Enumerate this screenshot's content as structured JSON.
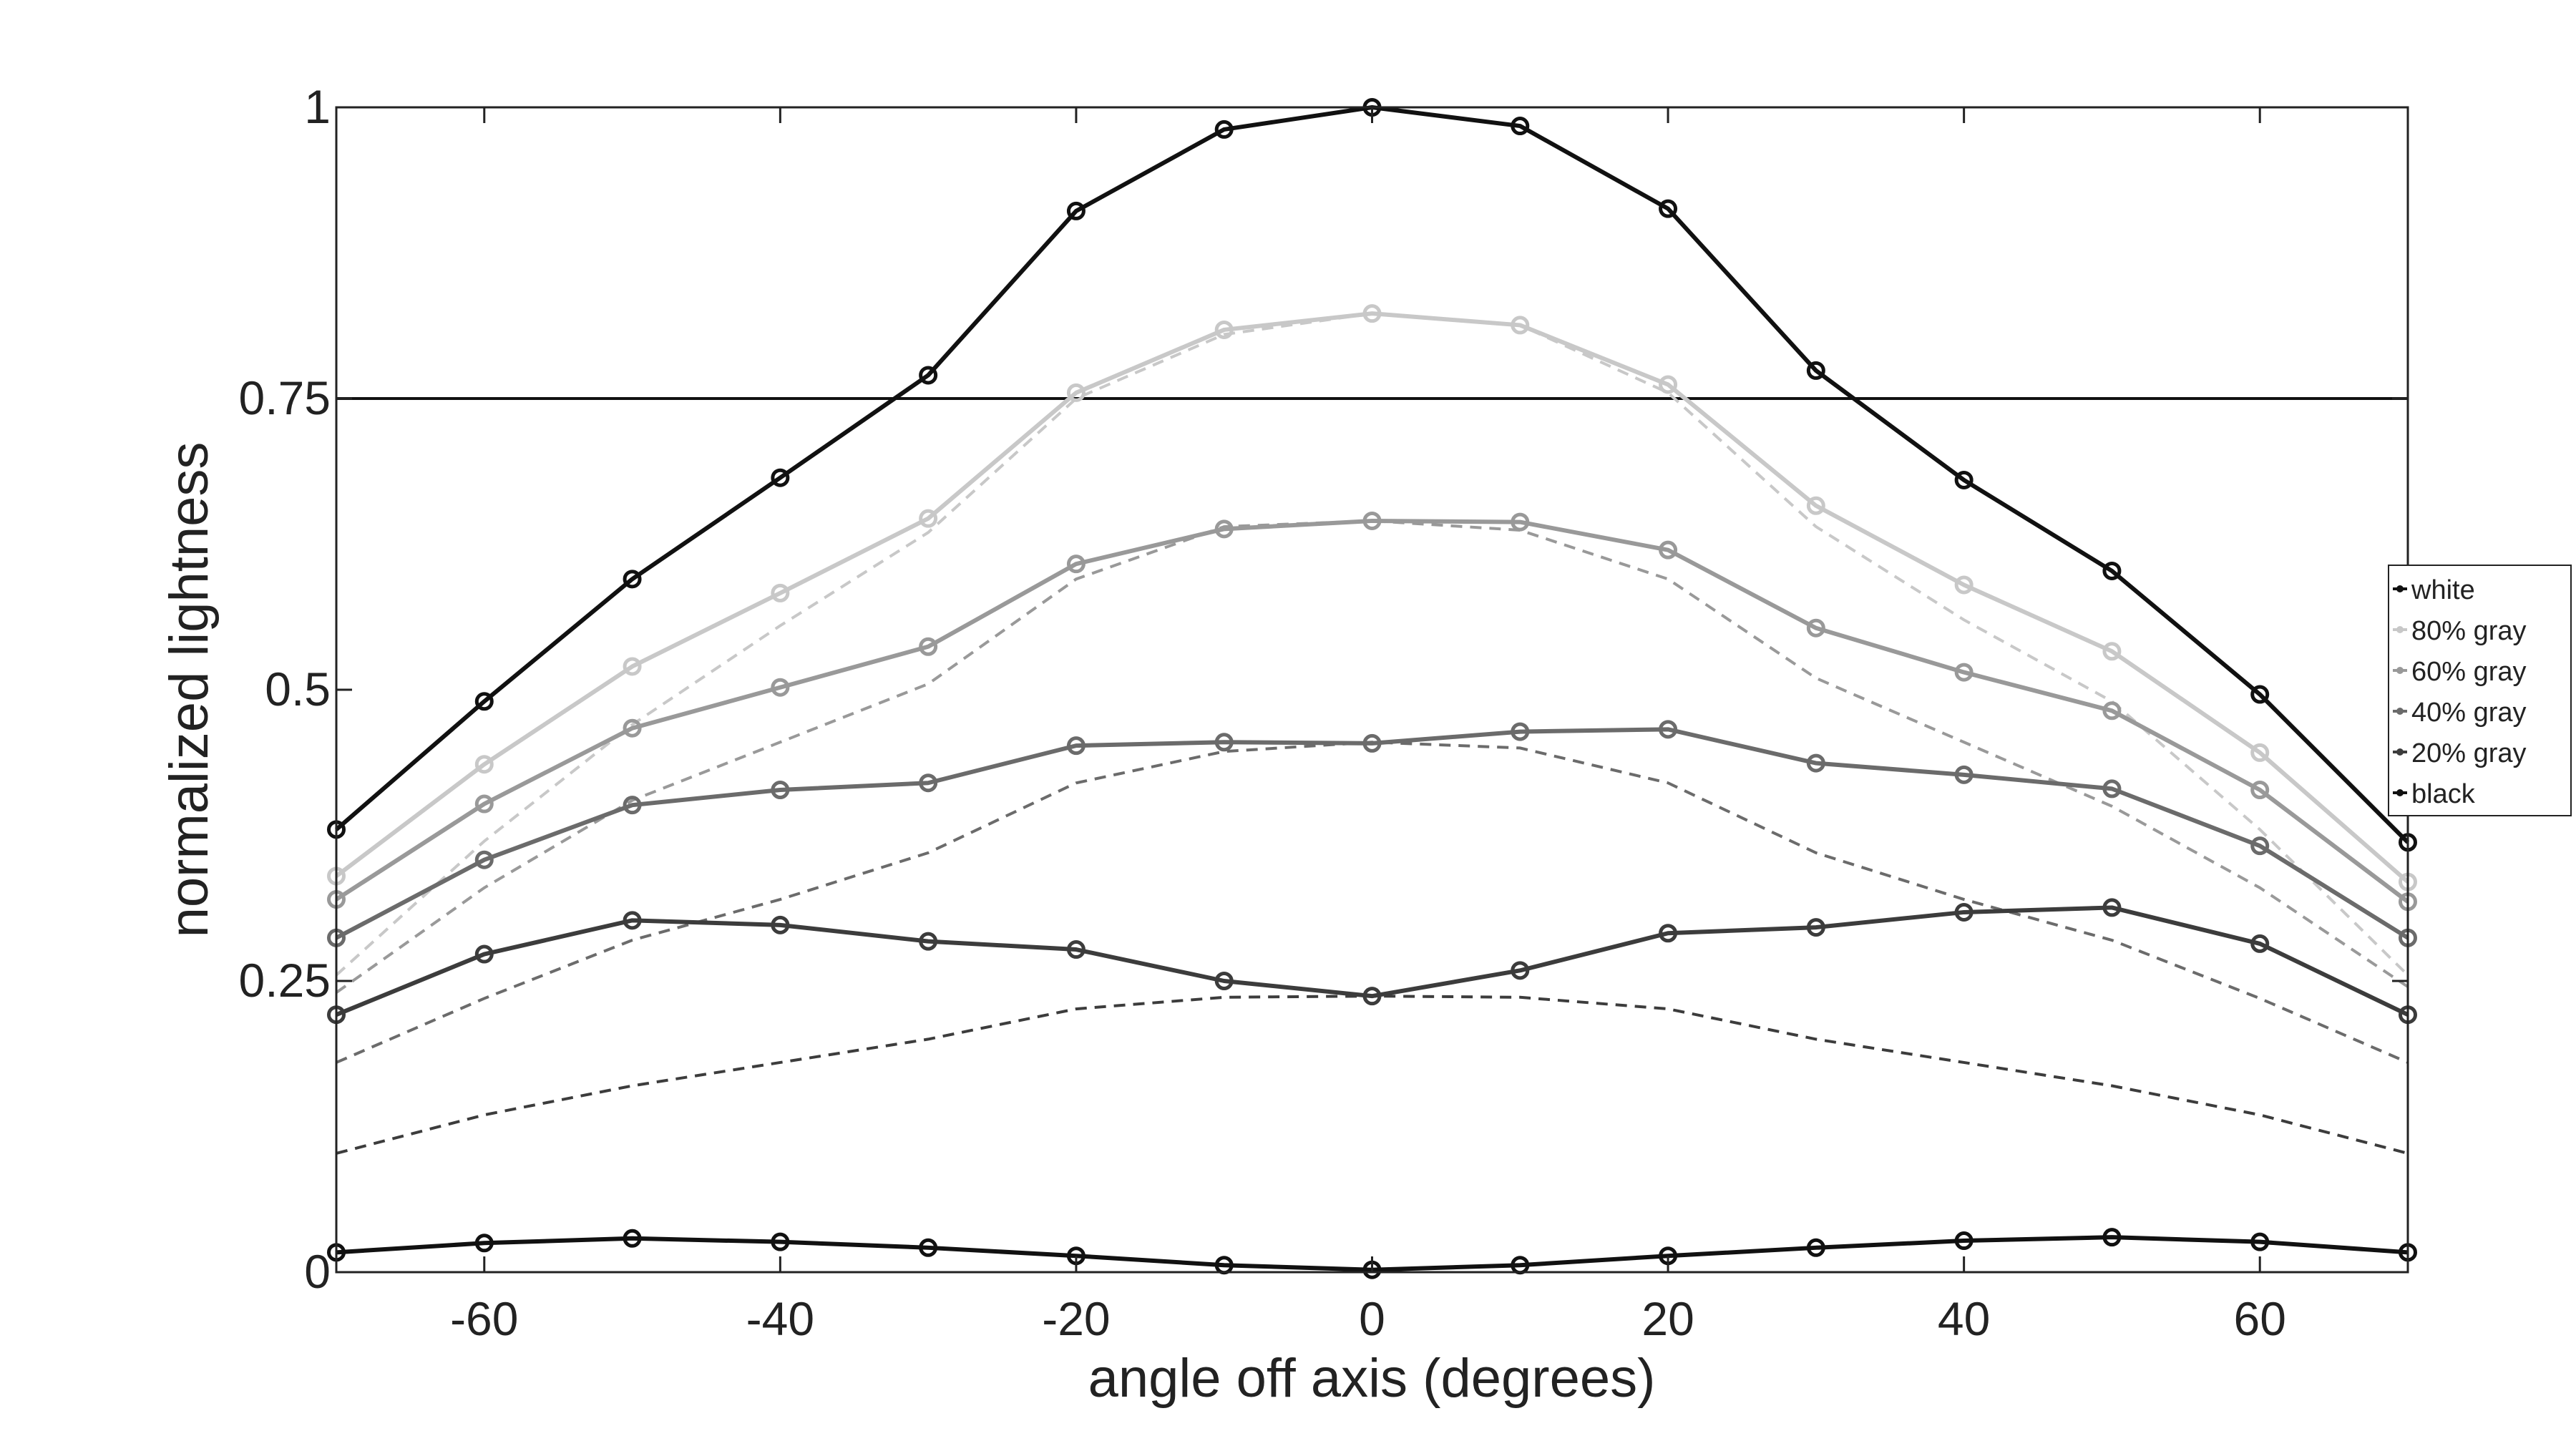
{
  "chart_data": {
    "type": "line",
    "title": "",
    "xlabel": "angle off axis (degrees)",
    "ylabel": "normalized lightness",
    "xlim": [
      -70,
      70
    ],
    "ylim": [
      0,
      1
    ],
    "x_ticks": [
      -60,
      -40,
      -20,
      0,
      20,
      40,
      60
    ],
    "x_tick_labels": [
      "-60",
      "-40",
      "-20",
      "0",
      "20",
      "40",
      "60"
    ],
    "y_ticks": [
      0,
      0.25,
      0.5,
      0.75,
      1
    ],
    "y_tick_labels": [
      "0",
      "0.25",
      "0.5",
      "0.75",
      "1"
    ],
    "reference_line": {
      "y": 0.75
    },
    "grid": false,
    "legend_position": "right",
    "x": [
      -70,
      -60,
      -50,
      -40,
      -30,
      -20,
      -10,
      0,
      10,
      20,
      30,
      40,
      50,
      60,
      70
    ],
    "series": [
      {
        "name": "white",
        "color": "#111111",
        "values": [
          0.38,
          0.49,
          0.595,
          0.682,
          0.77,
          0.911,
          0.981,
          1.0,
          0.984,
          0.913,
          0.774,
          0.68,
          0.602,
          0.496,
          0.369
        ]
      },
      {
        "name": "80% gray",
        "color": "#c8c8c8",
        "values": [
          0.34,
          0.436,
          0.52,
          0.583,
          0.647,
          0.755,
          0.809,
          0.823,
          0.813,
          0.762,
          0.658,
          0.59,
          0.533,
          0.446,
          0.335
        ]
      },
      {
        "name": "60% gray",
        "color": "#999999",
        "values": [
          0.32,
          0.402,
          0.467,
          0.502,
          0.537,
          0.608,
          0.638,
          0.645,
          0.644,
          0.62,
          0.553,
          0.515,
          0.482,
          0.414,
          0.318
        ]
      },
      {
        "name": "40% gray",
        "color": "#6b6b6b",
        "values": [
          0.287,
          0.354,
          0.401,
          0.414,
          0.42,
          0.452,
          0.455,
          0.454,
          0.464,
          0.466,
          0.437,
          0.427,
          0.415,
          0.366,
          0.287
        ]
      },
      {
        "name": "20% gray",
        "color": "#3c3c3c",
        "values": [
          0.221,
          0.273,
          0.302,
          0.298,
          0.284,
          0.277,
          0.25,
          0.237,
          0.259,
          0.291,
          0.296,
          0.309,
          0.313,
          0.282,
          0.221
        ]
      },
      {
        "name": "black",
        "color": "#111111",
        "values": [
          0.017,
          0.025,
          0.029,
          0.026,
          0.021,
          0.014,
          0.006,
          0.002,
          0.006,
          0.014,
          0.021,
          0.027,
          0.03,
          0.026,
          0.017
        ]
      }
    ],
    "reference_curves": [
      {
        "color": "#c8c8c8",
        "values": [
          0.255,
          0.37,
          0.47,
          0.555,
          0.635,
          0.75,
          0.805,
          0.823,
          0.813,
          0.755,
          0.64,
          0.56,
          0.49,
          0.38,
          0.255
        ]
      },
      {
        "color": "#999999",
        "values": [
          0.24,
          0.33,
          0.405,
          0.455,
          0.505,
          0.595,
          0.64,
          0.645,
          0.637,
          0.595,
          0.51,
          0.455,
          0.4,
          0.33,
          0.245
        ]
      },
      {
        "color": "#6b6b6b",
        "values": [
          0.18,
          0.235,
          0.285,
          0.32,
          0.36,
          0.42,
          0.447,
          0.455,
          0.45,
          0.42,
          0.36,
          0.32,
          0.285,
          0.235,
          0.18
        ]
      },
      {
        "color": "#3c3c3c",
        "values": [
          0.102,
          0.135,
          0.16,
          0.18,
          0.2,
          0.226,
          0.236,
          0.237,
          0.236,
          0.226,
          0.2,
          0.18,
          0.16,
          0.135,
          0.102
        ]
      }
    ]
  }
}
